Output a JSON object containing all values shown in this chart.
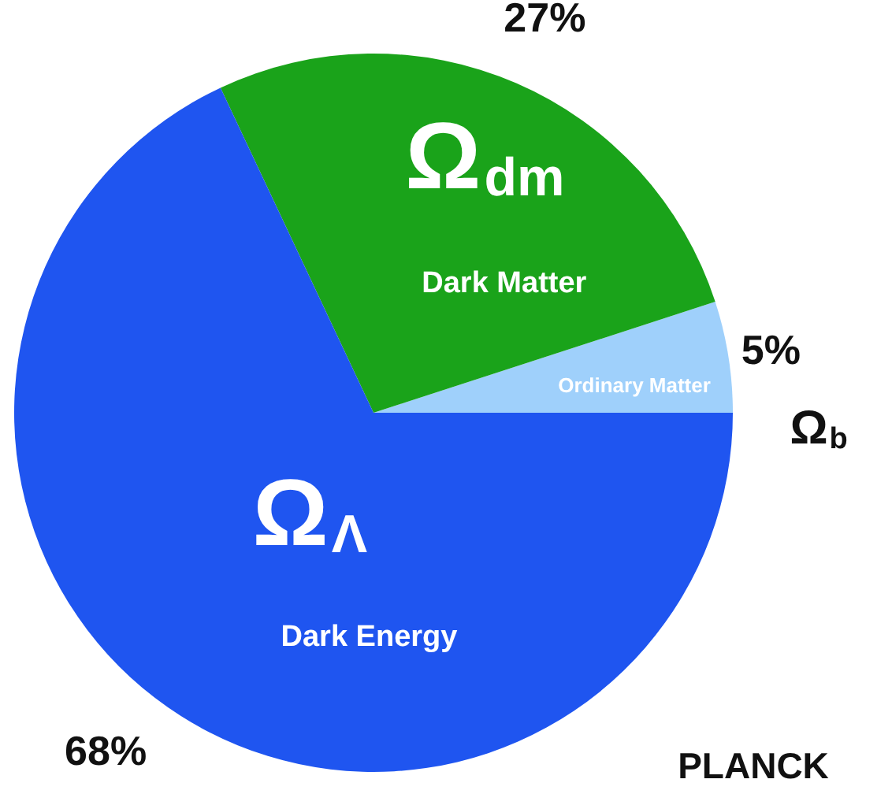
{
  "chart_data": {
    "type": "pie",
    "categories": [
      "Ordinary Matter",
      "Dark Matter",
      "Dark Energy"
    ],
    "values": [
      5,
      27,
      68
    ],
    "colors": [
      "#9fd0fb",
      "#1aa31a",
      "#1f55f0"
    ],
    "value_labels": [
      "5%",
      "27%",
      "68%"
    ],
    "annotations": [
      "Ω$_{b}$",
      "Ω$_{dm}$",
      "Ω$_{Λ}$",
      "PLANCK"
    ],
    "legend": false
  }
}
